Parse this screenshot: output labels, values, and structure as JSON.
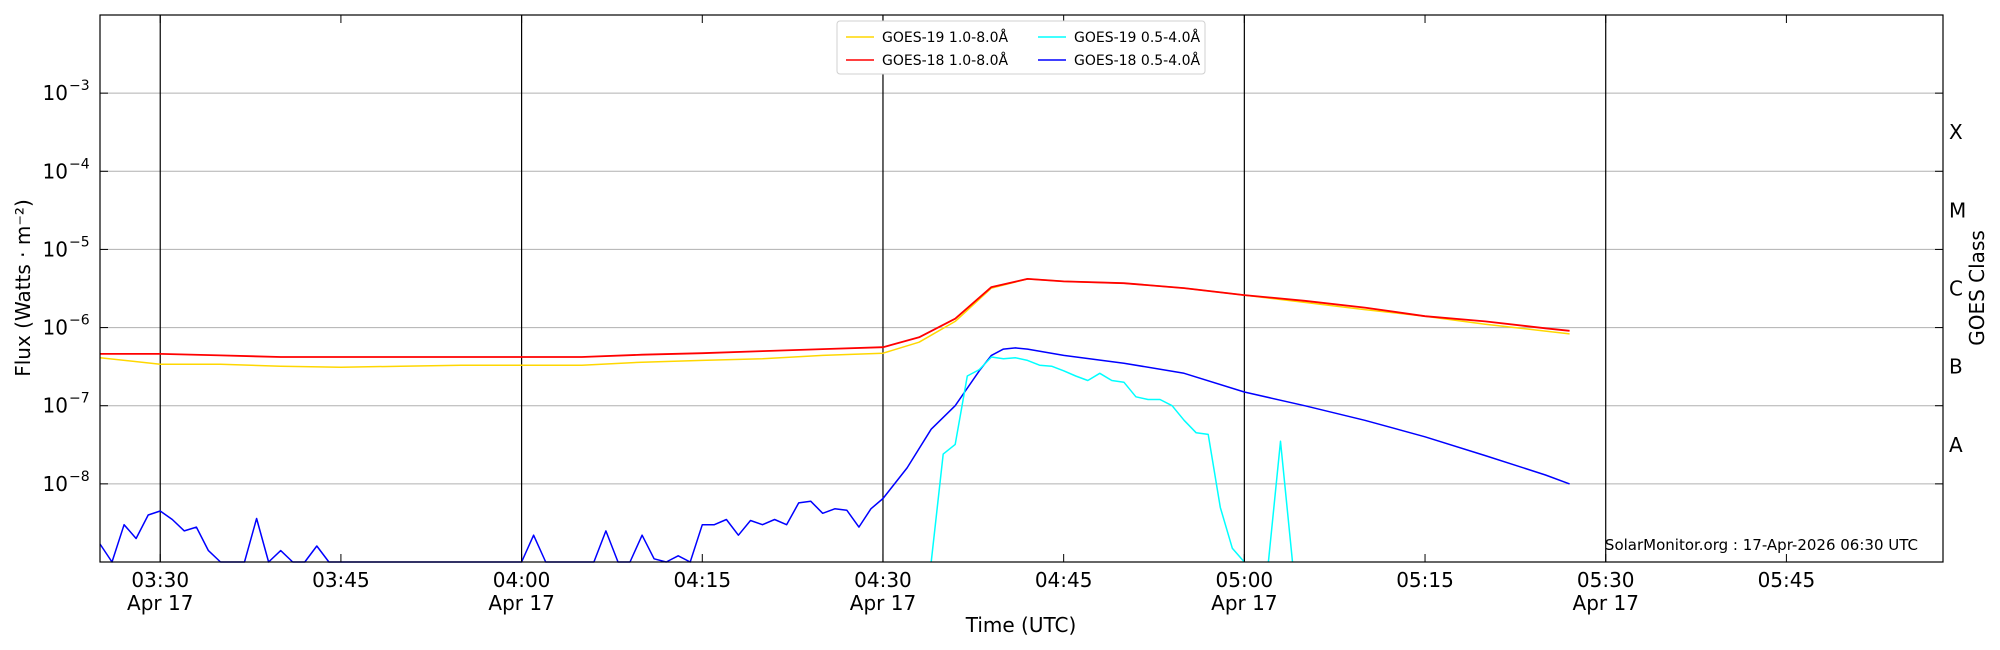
{
  "chart_data": {
    "type": "line",
    "xlabel": "Time (UTC)",
    "ylabel": "Flux (Watts · m⁻²)",
    "y2label": "GOES Class",
    "y_scale": "log",
    "ylim": [
      1e-09,
      0.01
    ],
    "x_range": [
      "03:25",
      "05:58"
    ],
    "grid": "horizontal",
    "legend_position": "top-center",
    "watermark": "SolarMonitor.org : 17-Apr-2026 06:30 UTC",
    "x_ticks": [
      {
        "time": "03:30",
        "label": "03:30",
        "sub": "Apr 17"
      },
      {
        "time": "03:45",
        "label": "03:45",
        "sub": ""
      },
      {
        "time": "04:00",
        "label": "04:00",
        "sub": "Apr 17"
      },
      {
        "time": "04:15",
        "label": "04:15",
        "sub": ""
      },
      {
        "time": "04:30",
        "label": "04:30",
        "sub": "Apr 17"
      },
      {
        "time": "04:45",
        "label": "04:45",
        "sub": ""
      },
      {
        "time": "05:00",
        "label": "05:00",
        "sub": "Apr 17"
      },
      {
        "time": "05:15",
        "label": "05:15",
        "sub": ""
      },
      {
        "time": "05:30",
        "label": "05:30",
        "sub": "Apr 17"
      },
      {
        "time": "05:45",
        "label": "05:45",
        "sub": ""
      }
    ],
    "vertical_lines": [
      "03:30",
      "04:00",
      "04:30",
      "05:00",
      "05:30"
    ],
    "y_ticks": [
      {
        "exp": -8,
        "label": "10",
        "sup": "−8"
      },
      {
        "exp": -7,
        "label": "10",
        "sup": "−7"
      },
      {
        "exp": -6,
        "label": "10",
        "sup": "−6"
      },
      {
        "exp": -5,
        "label": "10",
        "sup": "−5"
      },
      {
        "exp": -4,
        "label": "10",
        "sup": "−4"
      },
      {
        "exp": -3,
        "label": "10",
        "sup": "−3"
      }
    ],
    "goes_classes": [
      {
        "label": "A",
        "exp": -7.5
      },
      {
        "label": "B",
        "exp": -6.5
      },
      {
        "label": "C",
        "exp": -5.5
      },
      {
        "label": "M",
        "exp": -4.5
      },
      {
        "label": "X",
        "exp": -3.5
      }
    ],
    "series": [
      {
        "name": "GOES-19 1.0-8.0Å",
        "color": "#ffd700",
        "x": [
          "03:25",
          "03:30",
          "03:35",
          "03:40",
          "03:45",
          "03:50",
          "03:55",
          "04:00",
          "04:05",
          "04:10",
          "04:15",
          "04:20",
          "04:25",
          "04:30",
          "04:33",
          "04:36",
          "04:39",
          "04:42",
          "04:45",
          "04:50",
          "04:55",
          "05:00",
          "05:05",
          "05:10",
          "05:15",
          "05:20",
          "05:25",
          "05:27"
        ],
        "y": [
          4.1e-07,
          3.4e-07,
          3.4e-07,
          3.2e-07,
          3.1e-07,
          3.2e-07,
          3.3e-07,
          3.3e-07,
          3.3e-07,
          3.6e-07,
          3.8e-07,
          4e-07,
          4.4e-07,
          4.7e-07,
          6.5e-07,
          1.2e-06,
          3.2e-06,
          4.2e-06,
          3.9e-06,
          3.7e-06,
          3.2e-06,
          2.6e-06,
          2.1e-06,
          1.7e-06,
          1.4e-06,
          1.1e-06,
          9e-07,
          8.3e-07
        ]
      },
      {
        "name": "GOES-18 1.0-8.0Å",
        "color": "#ff0000",
        "x": [
          "03:25",
          "03:30",
          "03:35",
          "03:40",
          "03:45",
          "03:50",
          "03:55",
          "04:00",
          "04:05",
          "04:10",
          "04:15",
          "04:20",
          "04:25",
          "04:30",
          "04:33",
          "04:36",
          "04:39",
          "04:42",
          "04:45",
          "04:50",
          "04:55",
          "05:00",
          "05:05",
          "05:10",
          "05:15",
          "05:20",
          "05:25",
          "05:27"
        ],
        "y": [
          4.6e-07,
          4.6e-07,
          4.4e-07,
          4.2e-07,
          4.2e-07,
          4.2e-07,
          4.2e-07,
          4.2e-07,
          4.2e-07,
          4.5e-07,
          4.7e-07,
          5e-07,
          5.3e-07,
          5.6e-07,
          7.5e-07,
          1.3e-06,
          3.3e-06,
          4.2e-06,
          3.9e-06,
          3.7e-06,
          3.2e-06,
          2.6e-06,
          2.2e-06,
          1.8e-06,
          1.4e-06,
          1.2e-06,
          9.8e-07,
          9.1e-07
        ]
      },
      {
        "name": "GOES-19 0.5-4.0Å",
        "color": "#00ffff",
        "x": [
          "04:34",
          "04:35",
          "04:36",
          "04:37",
          "04:38",
          "04:39",
          "04:40",
          "04:41",
          "04:42",
          "04:43",
          "04:44",
          "04:45",
          "04:46",
          "04:47",
          "04:48",
          "04:49",
          "04:50",
          "04:51",
          "04:52",
          "04:53",
          "04:54",
          "04:55",
          "04:56",
          "04:57",
          "04:58",
          "04:59",
          "05:00",
          "null1",
          "05:02",
          "05:03",
          "05:04"
        ],
        "y": [
          1e-09,
          2.4e-08,
          3.2e-08,
          2.4e-07,
          2.9e-07,
          4.2e-07,
          4e-07,
          4.1e-07,
          3.8e-07,
          3.3e-07,
          3.2e-07,
          2.8e-07,
          2.4e-07,
          2.1e-07,
          2.6e-07,
          2.1e-07,
          2e-07,
          1.3e-07,
          1.2e-07,
          1.2e-07,
          1e-07,
          6.5e-08,
          4.5e-08,
          4.3e-08,
          5e-09,
          1.5e-09,
          1e-09,
          null,
          1e-09,
          3.5e-08,
          1e-09
        ]
      },
      {
        "name": "GOES-18 0.5-4.0Å",
        "color": "#0000ff",
        "x": [
          "03:25",
          "03:26",
          "03:27",
          "03:28",
          "03:29",
          "03:30",
          "03:31",
          "03:32",
          "03:33",
          "03:34",
          "03:35",
          "03:36",
          "03:37",
          "03:38",
          "03:39",
          "03:40",
          "03:41",
          "03:42",
          "03:43",
          "03:44",
          "03:45",
          "03:46",
          "03:47",
          "03:48",
          "03:50",
          "03:55",
          "03:59",
          "04:00",
          "04:01",
          "04:02",
          "04:05",
          "04:06",
          "04:07",
          "04:08",
          "04:09",
          "04:10",
          "04:11",
          "04:12",
          "04:13",
          "04:14",
          "04:15",
          "04:16",
          "04:17",
          "04:18",
          "04:19",
          "04:20",
          "04:21",
          "04:22",
          "04:23",
          "04:24",
          "04:25",
          "04:26",
          "04:27",
          "04:28",
          "04:29",
          "04:30",
          "04:32",
          "04:34",
          "04:36",
          "04:38",
          "04:39",
          "04:40",
          "04:41",
          "04:42",
          "04:45",
          "04:50",
          "04:55",
          "05:00",
          "05:05",
          "05:10",
          "05:15",
          "05:20",
          "05:25",
          "05:27"
        ],
        "y": [
          1.7e-09,
          1e-09,
          3e-09,
          2e-09,
          4e-09,
          4.5e-09,
          3.5e-09,
          2.5e-09,
          2.8e-09,
          1.4e-09,
          1e-09,
          1e-09,
          1e-09,
          3.6e-09,
          1e-09,
          1.4e-09,
          1e-09,
          1e-09,
          1.6e-09,
          1e-09,
          1e-09,
          1e-09,
          1e-09,
          1e-09,
          1e-09,
          1e-09,
          1e-09,
          1e-09,
          2.2e-09,
          1e-09,
          1e-09,
          1e-09,
          2.5e-09,
          1e-09,
          1e-09,
          2.2e-09,
          1.1e-09,
          1e-09,
          1.2e-09,
          1e-09,
          3e-09,
          3e-09,
          3.5e-09,
          2.2e-09,
          3.4e-09,
          3e-09,
          3.5e-09,
          3e-09,
          5.7e-09,
          6e-09,
          4.2e-09,
          4.8e-09,
          4.6e-09,
          2.8e-09,
          4.8e-09,
          6.5e-09,
          1.6e-08,
          5e-08,
          1e-07,
          2.8e-07,
          4.4e-07,
          5.3e-07,
          5.5e-07,
          5.3e-07,
          4.4e-07,
          3.5e-07,
          2.6e-07,
          1.5e-07,
          1e-07,
          6.5e-08,
          4e-08,
          2.3e-08,
          1.3e-08,
          1e-08
        ]
      }
    ]
  }
}
